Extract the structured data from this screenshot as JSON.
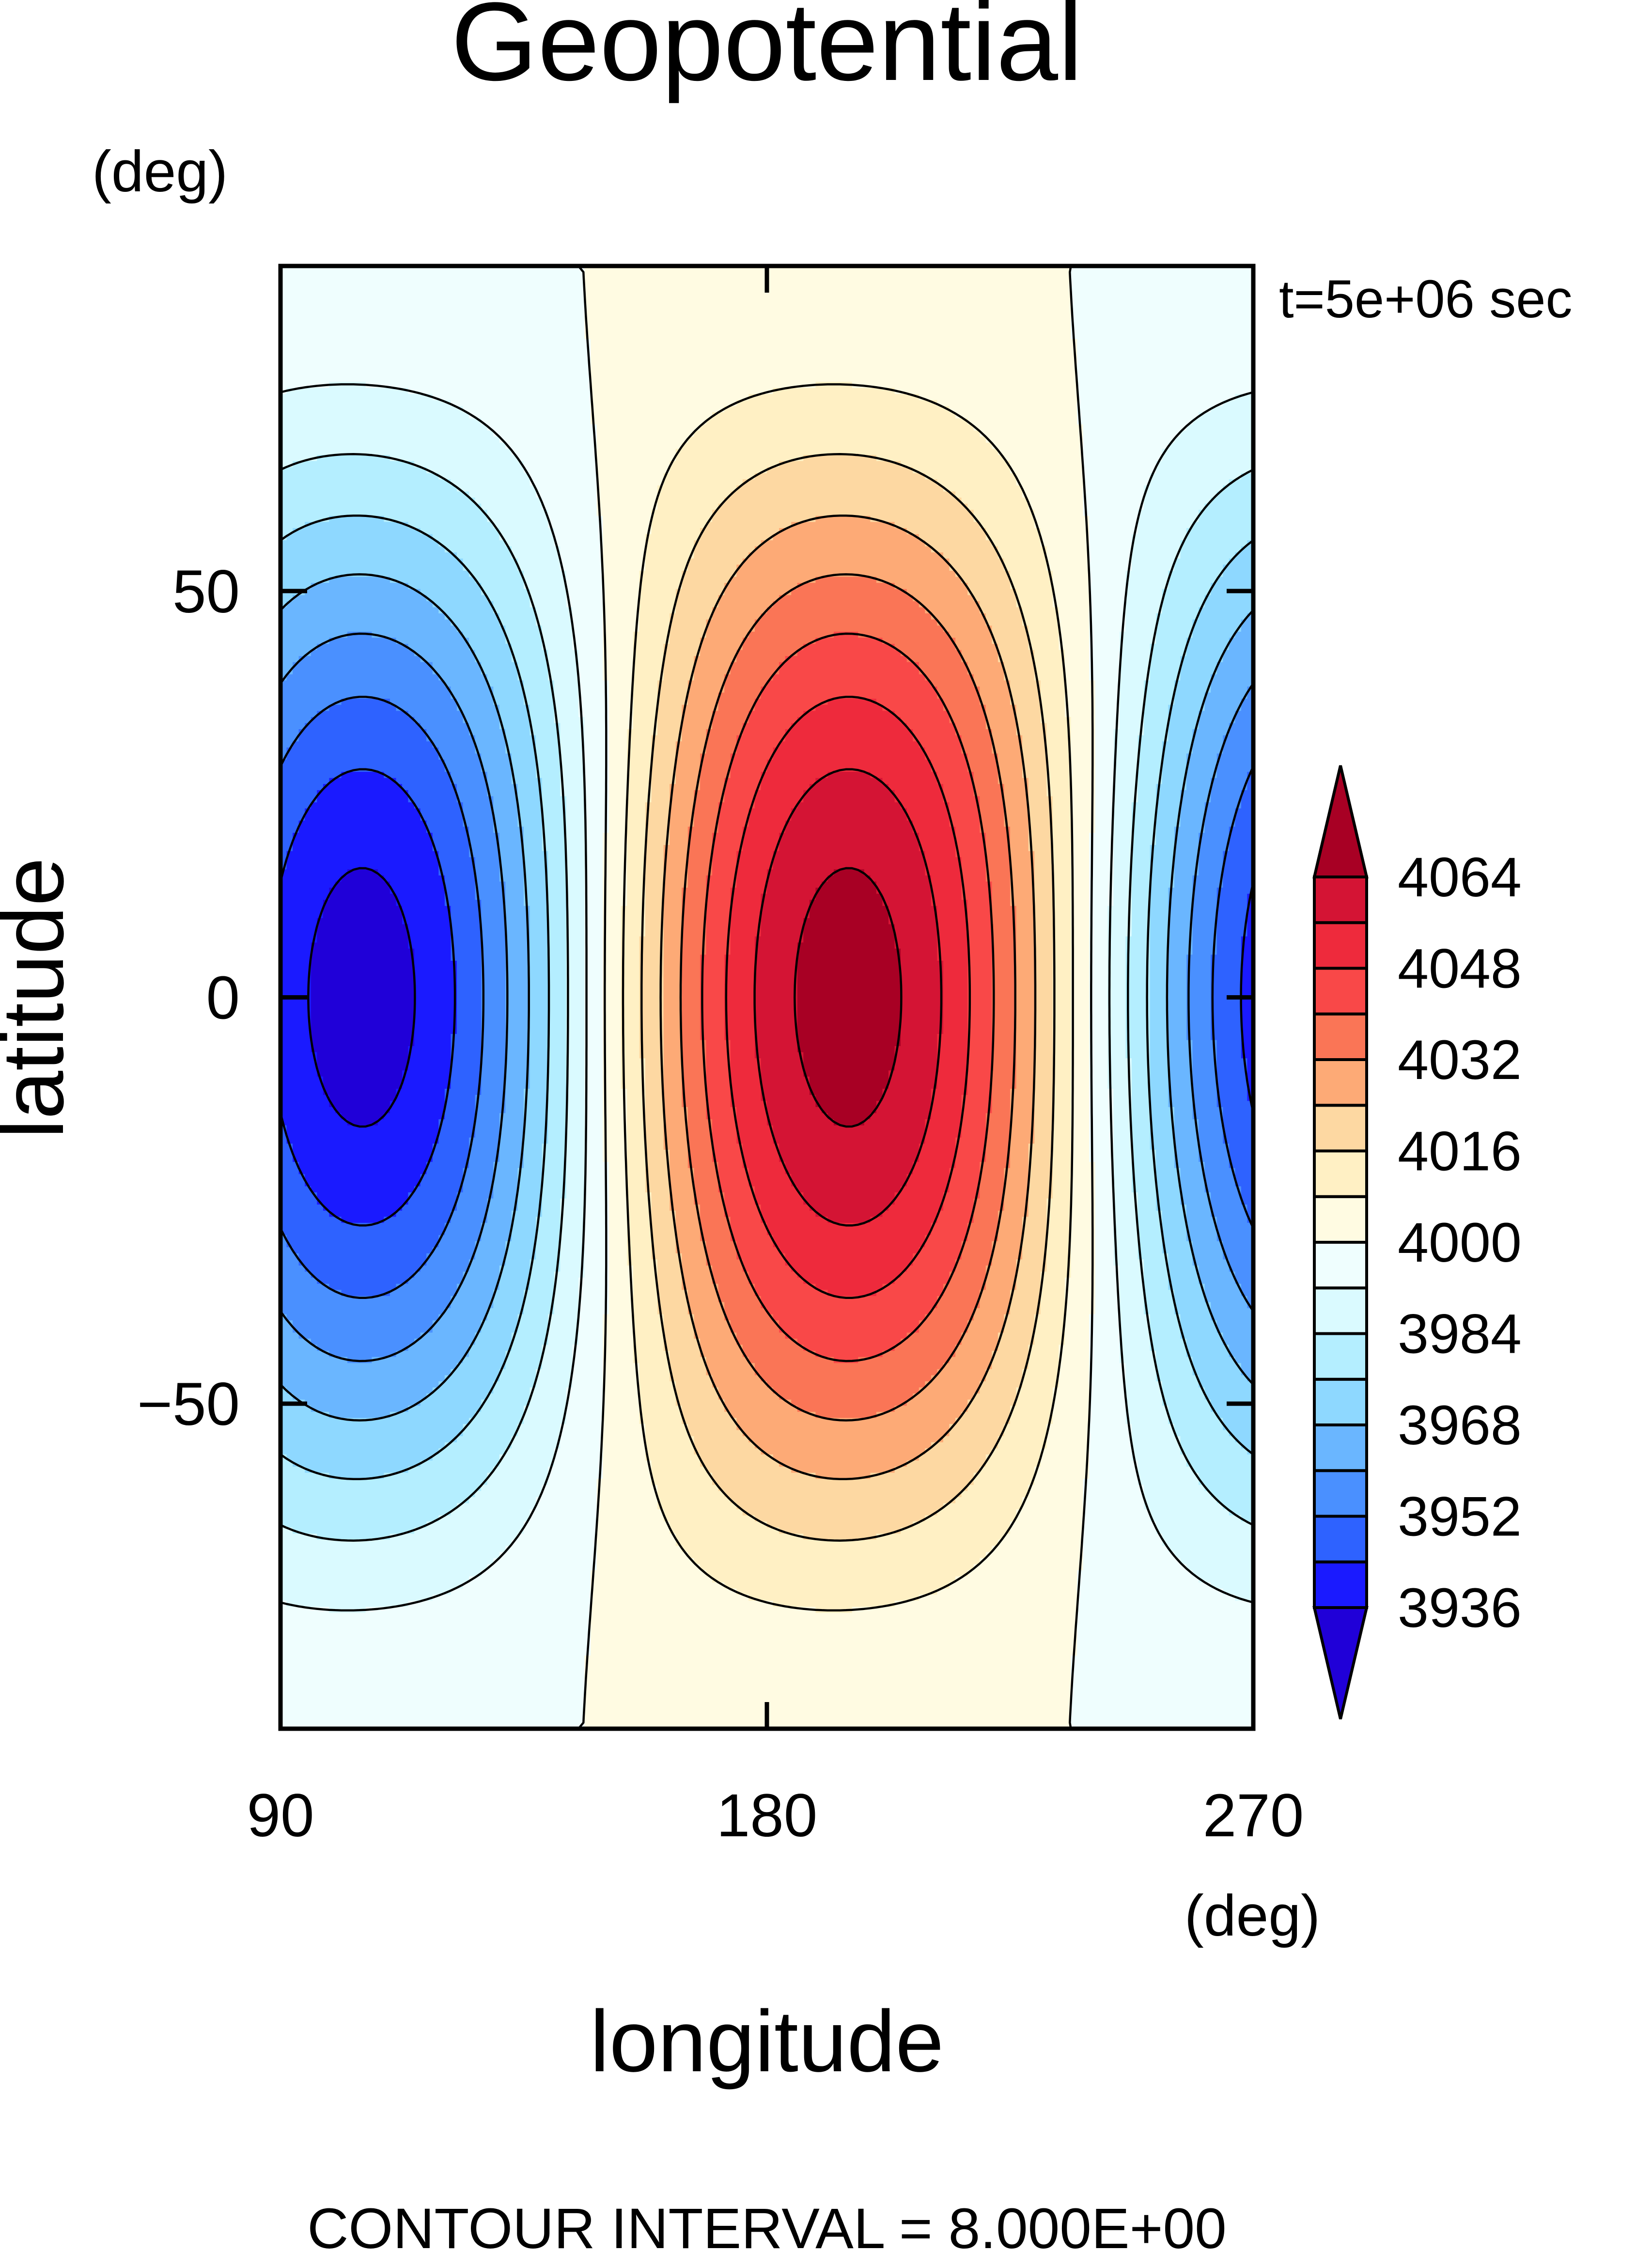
{
  "chart_data": {
    "type": "heatmap",
    "title": "Geopotential",
    "xlabel": "longitude",
    "ylabel": "latitude",
    "x_unit": "(deg)",
    "y_unit": "(deg)",
    "time_label": "t=5e+06 sec",
    "footer": "CONTOUR INTERVAL = 8.000E+00",
    "xlim": [
      90,
      270
    ],
    "ylim": [
      -90,
      90
    ],
    "x_ticks": [
      90,
      180,
      270
    ],
    "x_tick_labels": [
      "90",
      "180",
      "270"
    ],
    "y_ticks": [
      50,
      0,
      -50
    ],
    "y_tick_labels": [
      "50",
      "0",
      "−50"
    ],
    "contour_interval": 8,
    "colorbar": {
      "levels": [
        3936,
        3944,
        3952,
        3960,
        3968,
        3976,
        3984,
        3992,
        4000,
        4008,
        4016,
        4024,
        4032,
        4040,
        4048,
        4056,
        4064
      ],
      "tick_labels": [
        "4064",
        "4048",
        "4032",
        "4016",
        "4000",
        "3984",
        "3968",
        "3952",
        "3936"
      ],
      "colors": [
        "#2000d8",
        "#1a1aff",
        "#2e62ff",
        "#4a90ff",
        "#6ab6ff",
        "#8ed8ff",
        "#b4eeff",
        "#dafaff",
        "#effefe",
        "#fffbe2",
        "#fff0c4",
        "#fdd8a2",
        "#fdaa76",
        "#fa7556",
        "#f94848",
        "#ee2a3c",
        "#d41434",
        "#a80024"
      ]
    },
    "field": {
      "mean": 4000,
      "features": [
        {
          "kind": "maximum",
          "lon": 195,
          "lat": 0,
          "value": 4068
        },
        {
          "kind": "minimum",
          "lon": 90,
          "lat": 0,
          "value": 3932
        },
        {
          "kind": "minimum",
          "lon": 270,
          "lat": 0,
          "value": 3932
        }
      ]
    }
  }
}
